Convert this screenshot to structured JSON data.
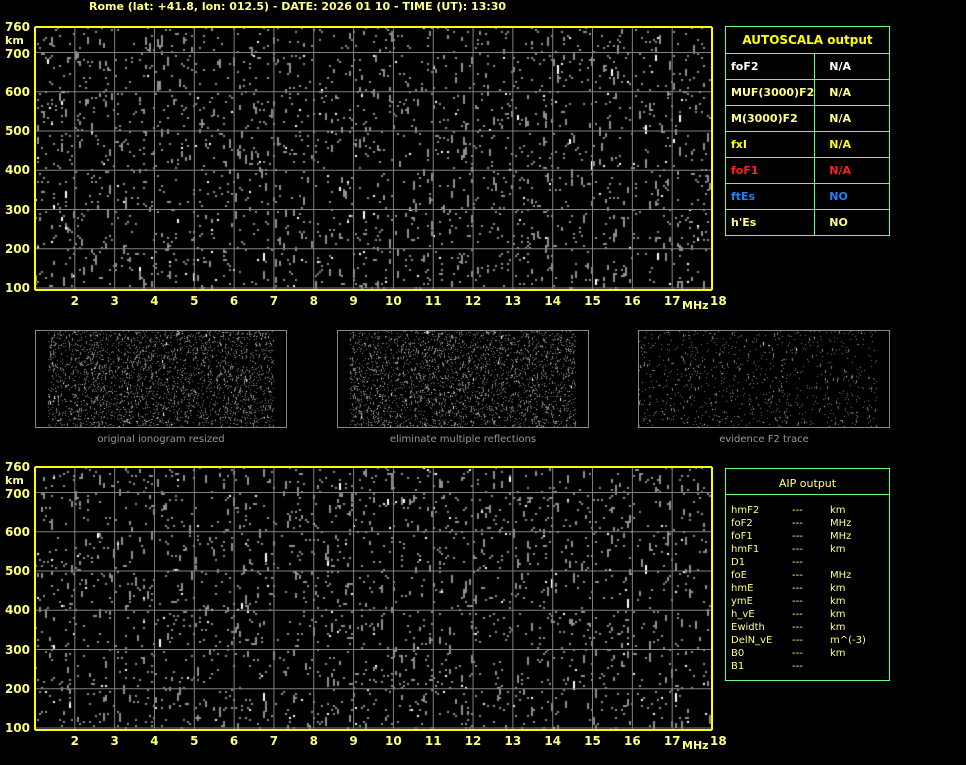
{
  "title": "Rome (lat: +41.8, lon: 012.5) - DATE: 2026 01 10 - TIME (UT): 13:30",
  "colors": {
    "axis": "#ffff00",
    "label": "#ffff80",
    "grid": "#808080",
    "table_border": "#60ff80",
    "white": "#ffffff",
    "red": "#ff2020",
    "blue": "#2080ff"
  },
  "ionogram": {
    "y_unit": "km",
    "x_unit": "MHz",
    "y_ticks": [
      "760",
      "700",
      "600",
      "500",
      "400",
      "300",
      "200",
      "100"
    ],
    "x_ticks": [
      "2",
      "3",
      "4",
      "5",
      "6",
      "7",
      "8",
      "9",
      "10",
      "11",
      "12",
      "13",
      "14",
      "15",
      "16",
      "17",
      "18"
    ],
    "xlim": [
      1,
      18
    ],
    "ylim": [
      100,
      760
    ]
  },
  "thumbnails": [
    {
      "caption": "original ionogram resized"
    },
    {
      "caption": "eliminate multiple reflections"
    },
    {
      "caption": "evidence F2 trace"
    }
  ],
  "autoscala": {
    "header": "AUTOSCALA output",
    "rows": [
      {
        "name": "foF2",
        "value": "N/A",
        "color": "#ffffff"
      },
      {
        "name": "MUF(3000)F2",
        "value": "N/A",
        "color": "#ffff80"
      },
      {
        "name": "M(3000)F2",
        "value": "N/A",
        "color": "#ffff80"
      },
      {
        "name": "fxI",
        "value": "N/A",
        "color": "#ffff00"
      },
      {
        "name": "foF1",
        "value": "N/A",
        "color": "#ff2020"
      },
      {
        "name": "ftEs",
        "value": "NO",
        "color": "#2080ff"
      },
      {
        "name": "h'Es",
        "value": "NO",
        "color": "#ffff80"
      }
    ]
  },
  "aip": {
    "header": "AIP output",
    "rows": [
      {
        "name": "hmF2",
        "value": "---",
        "unit": "km"
      },
      {
        "name": "foF2",
        "value": "---",
        "unit": "MHz"
      },
      {
        "name": "foF1",
        "value": "---",
        "unit": "MHz"
      },
      {
        "name": "hmF1",
        "value": "---",
        "unit": "km"
      },
      {
        "name": "D1",
        "value": "---",
        "unit": ""
      },
      {
        "name": "foE",
        "value": "---",
        "unit": "MHz"
      },
      {
        "name": "hmE",
        "value": "---",
        "unit": "km"
      },
      {
        "name": "ymE",
        "value": "---",
        "unit": "km"
      },
      {
        "name": "h_vE",
        "value": "---",
        "unit": "km"
      },
      {
        "name": "Ewidth",
        "value": "---",
        "unit": "km"
      },
      {
        "name": "DelN_vE",
        "value": "---",
        "unit": "m^(-3)"
      },
      {
        "name": "B0",
        "value": "---",
        "unit": "km"
      },
      {
        "name": "B1",
        "value": "---",
        "unit": ""
      }
    ]
  }
}
